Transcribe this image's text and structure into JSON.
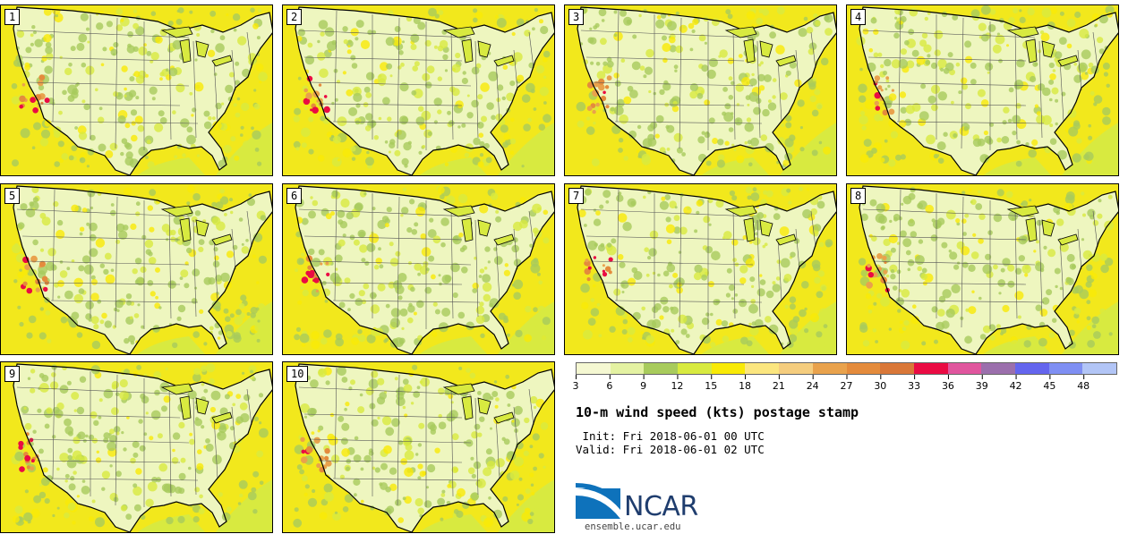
{
  "panels": [
    {
      "label": "1"
    },
    {
      "label": "2"
    },
    {
      "label": "3"
    },
    {
      "label": "4"
    },
    {
      "label": "5"
    },
    {
      "label": "6"
    },
    {
      "label": "7"
    },
    {
      "label": "8"
    },
    {
      "label": "9"
    },
    {
      "label": "10"
    }
  ],
  "colorbar": {
    "colors": [
      "#f5f8d2",
      "#e4f2a2",
      "#a8cb5c",
      "#d8ea40",
      "#f9ea06",
      "#fbe67f",
      "#f5cd7e",
      "#e9a24c",
      "#e48b3c",
      "#d97738",
      "#ea0b43",
      "#e0569e",
      "#9b6fac",
      "#6465ee",
      "#7f8ff3",
      "#b2c5f6"
    ],
    "ticks": [
      "3",
      "6",
      "9",
      "12",
      "15",
      "18",
      "21",
      "24",
      "27",
      "30",
      "33",
      "36",
      "39",
      "42",
      "45",
      "48"
    ]
  },
  "title": "10-m wind speed (kts) postage stamp",
  "init": " Init: Fri 2018-06-01 00 UTC",
  "valid": "Valid: Fri 2018-06-01 02 UTC",
  "logo": {
    "text": "NCAR",
    "url": "ensemble.ucar.edu"
  }
}
